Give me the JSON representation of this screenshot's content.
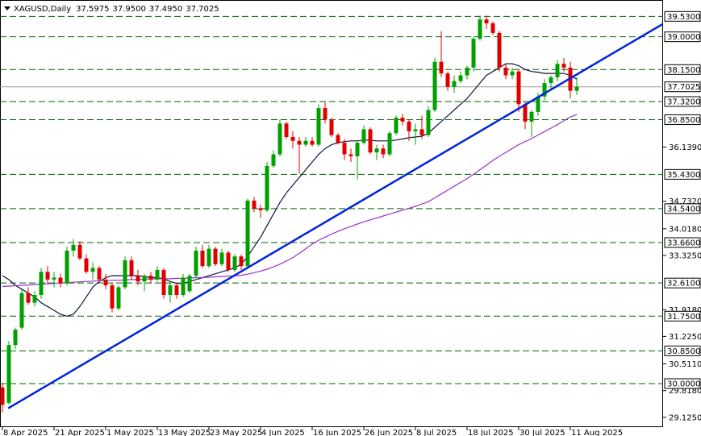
{
  "chart_data": {
    "type": "candlestick",
    "symbol": "XAGUSD,Daily",
    "header_ohlc": [
      "37.5975",
      "37.9500",
      "37.4950",
      "37.7025"
    ],
    "up_color": "#00a000",
    "down_color": "#e00000",
    "open": [
      29.9,
      29.5,
      31.0,
      31.45,
      32.35,
      32.1,
      32.3,
      32.9,
      32.7,
      32.75,
      32.6,
      33.45,
      33.6,
      33.25,
      32.9,
      33.0,
      32.7,
      32.55,
      31.95,
      32.5,
      33.2,
      32.8,
      32.65,
      32.8,
      32.7,
      32.95,
      32.3,
      32.55,
      32.3,
      32.4,
      32.8,
      33.45,
      33.05,
      33.5,
      33.1,
      33.4,
      32.95,
      33.3,
      33.05,
      34.75,
      34.55,
      34.5,
      35.65,
      35.95,
      36.75,
      36.4,
      36.3,
      36.2,
      36.3,
      36.2,
      37.15,
      36.85,
      36.45,
      36.25,
      35.95,
      35.9,
      36.25,
      36.6,
      36.0,
      36.1,
      35.95,
      36.5,
      36.9,
      36.8,
      36.55,
      36.6,
      36.45,
      37.1,
      38.35,
      38.05,
      37.7,
      37.85,
      38.0,
      38.2,
      38.95,
      39.45,
      39.35,
      39.1,
      38.2,
      38.0,
      38.1,
      37.25,
      36.8,
      37.05,
      37.45,
      37.8,
      37.95,
      38.3,
      38.2,
      37.5975
    ],
    "high": [
      30.0,
      31.1,
      31.45,
      32.45,
      32.5,
      32.4,
      33.0,
      33.05,
      32.9,
      32.85,
      33.55,
      33.75,
      33.7,
      33.35,
      33.15,
      33.05,
      32.85,
      32.6,
      32.55,
      33.3,
      33.3,
      32.95,
      32.85,
      32.9,
      33.05,
      33.0,
      32.65,
      32.6,
      32.85,
      32.85,
      33.55,
      33.6,
      33.6,
      33.55,
      33.5,
      33.45,
      33.35,
      33.35,
      34.8,
      34.85,
      34.65,
      35.75,
      36.05,
      36.85,
      36.8,
      36.55,
      36.4,
      36.4,
      36.4,
      37.25,
      37.3,
      36.9,
      36.5,
      36.35,
      36.1,
      36.3,
      36.7,
      36.65,
      36.2,
      36.2,
      36.55,
      36.95,
      37.0,
      36.85,
      36.75,
      36.95,
      37.2,
      38.45,
      39.15,
      38.1,
      38.0,
      38.1,
      38.25,
      39.0,
      39.55,
      39.55,
      39.4,
      39.15,
      38.3,
      38.2,
      38.15,
      37.3,
      37.1,
      37.55,
      37.9,
      38.0,
      38.4,
      38.45,
      38.35,
      37.95
    ],
    "low": [
      29.25,
      29.45,
      30.9,
      31.4,
      32.05,
      32.0,
      32.2,
      32.6,
      32.5,
      32.5,
      32.55,
      33.3,
      33.2,
      32.85,
      32.7,
      32.6,
      32.45,
      31.85,
      31.9,
      32.45,
      32.7,
      32.55,
      32.4,
      32.6,
      32.65,
      32.2,
      32.1,
      32.2,
      32.25,
      32.35,
      32.75,
      33.0,
      33.0,
      33.05,
      33.05,
      32.9,
      32.9,
      32.95,
      33.0,
      34.45,
      34.3,
      34.45,
      35.6,
      35.9,
      36.35,
      36.1,
      35.45,
      36.15,
      36.15,
      36.15,
      36.75,
      36.4,
      36.2,
      35.8,
      35.75,
      35.3,
      36.2,
      35.95,
      35.8,
      35.85,
      35.9,
      36.45,
      36.7,
      36.3,
      36.2,
      36.35,
      36.4,
      37.05,
      37.95,
      37.6,
      37.55,
      37.8,
      37.9,
      38.1,
      38.9,
      39.2,
      39.05,
      38.1,
      37.9,
      37.9,
      37.05,
      36.6,
      36.4,
      36.95,
      37.35,
      37.6,
      37.85,
      38.1,
      37.4,
      37.495
    ],
    "close": [
      29.45,
      31.0,
      31.4,
      32.35,
      32.1,
      32.3,
      32.9,
      32.7,
      32.75,
      32.6,
      33.45,
      33.6,
      33.25,
      32.9,
      33.0,
      32.7,
      32.55,
      31.95,
      32.5,
      33.2,
      32.8,
      32.65,
      32.8,
      32.7,
      32.95,
      32.3,
      32.55,
      32.3,
      32.75,
      32.8,
      33.45,
      33.05,
      33.5,
      33.1,
      33.4,
      32.95,
      33.3,
      33.05,
      34.75,
      34.55,
      34.5,
      35.65,
      35.95,
      36.75,
      36.4,
      36.3,
      36.2,
      36.3,
      36.2,
      37.15,
      36.85,
      36.45,
      36.25,
      35.95,
      35.9,
      36.25,
      36.6,
      36.0,
      36.1,
      35.95,
      36.5,
      36.9,
      36.8,
      36.55,
      36.6,
      36.45,
      37.1,
      38.35,
      38.05,
      37.7,
      37.85,
      38.0,
      38.2,
      38.95,
      39.45,
      39.35,
      39.1,
      38.2,
      38.0,
      38.1,
      37.25,
      36.8,
      37.05,
      37.45,
      37.8,
      37.95,
      38.3,
      38.2,
      37.6,
      37.7025
    ],
    "moving_averages": [
      {
        "color": "#0b1540",
        "values": [
          32.8,
          32.7,
          32.55,
          32.45,
          32.35,
          32.25,
          32.1,
          32.0,
          31.9,
          31.8,
          31.75,
          31.8,
          32.0,
          32.25,
          32.5,
          32.65,
          32.75,
          32.8,
          32.8,
          32.8,
          32.8,
          32.8,
          32.78,
          32.75,
          32.75,
          32.72,
          32.65,
          32.6,
          32.6,
          32.65,
          32.7,
          32.75,
          32.8,
          32.85,
          32.9,
          32.95,
          33.0,
          33.1,
          33.3,
          33.55,
          33.8,
          34.1,
          34.4,
          34.7,
          34.95,
          35.15,
          35.35,
          35.55,
          35.75,
          35.95,
          36.1,
          36.2,
          36.25,
          36.28,
          36.3,
          36.3,
          36.32,
          36.32,
          36.3,
          36.3,
          36.3,
          36.32,
          36.35,
          36.38,
          36.4,
          36.42,
          36.5,
          36.65,
          36.8,
          36.95,
          37.1,
          37.25,
          37.4,
          37.6,
          37.8,
          38.0,
          38.1,
          38.2,
          38.3,
          38.3,
          38.25,
          38.15,
          38.1,
          38.08,
          38.05,
          38.05,
          38.05,
          38.05,
          38.0,
          37.9
        ]
      },
      {
        "color": "#9932cc",
        "values": [
          32.52,
          32.53,
          32.54,
          32.55,
          32.56,
          32.57,
          32.58,
          32.59,
          32.6,
          32.61,
          32.62,
          32.63,
          32.64,
          32.65,
          32.66,
          32.67,
          32.67,
          32.68,
          32.68,
          32.69,
          32.7,
          32.7,
          32.71,
          32.71,
          32.72,
          32.72,
          32.72,
          32.73,
          32.73,
          32.74,
          32.75,
          32.75,
          32.76,
          32.77,
          32.78,
          32.79,
          32.8,
          32.81,
          32.84,
          32.88,
          32.92,
          32.97,
          33.03,
          33.1,
          33.18,
          33.27,
          33.38,
          33.5,
          33.62,
          33.72,
          33.8,
          33.88,
          33.95,
          34.02,
          34.08,
          34.14,
          34.2,
          34.25,
          34.3,
          34.35,
          34.4,
          34.45,
          34.5,
          34.55,
          34.6,
          34.66,
          34.72,
          34.82,
          34.92,
          35.02,
          35.12,
          35.22,
          35.32,
          35.43,
          35.55,
          35.67,
          35.79,
          35.9,
          36.0,
          36.1,
          36.2,
          36.28,
          36.36,
          36.45,
          36.54,
          36.63,
          36.72,
          36.82,
          36.92,
          36.98
        ]
      }
    ],
    "trendline": {
      "color": "#0022dd",
      "x": [
        0.9,
        102.4
      ],
      "values": [
        29.36,
        39.34
      ]
    },
    "levels_color": "#006400",
    "levels": [
      {
        "value": 39.53,
        "label": "39.5300"
      },
      {
        "value": 39.0,
        "label": "39.0000"
      },
      {
        "value": 38.15,
        "label": "38.1500"
      },
      {
        "value": 37.32,
        "label": "37.3200"
      },
      {
        "value": 36.85,
        "label": "36.8500"
      },
      {
        "value": 35.43,
        "label": "35.4300"
      },
      {
        "value": 34.54,
        "label": "34.5400"
      },
      {
        "value": 33.66,
        "label": "33.6600"
      },
      {
        "value": 32.61,
        "label": "32.6100"
      },
      {
        "value": 31.75,
        "label": "31.7500"
      },
      {
        "value": 30.85,
        "label": "30.8500"
      },
      {
        "value": 30.0,
        "label": "30.0000"
      }
    ],
    "current_price": 37.7025,
    "xlim": [
      -0.375,
      102.375
    ],
    "ylim": [
      28.87,
      39.955
    ],
    "yticks": [
      {
        "value": 36.139,
        "label": "36.1390"
      },
      {
        "value": 34.732,
        "label": "34.7320"
      },
      {
        "value": 34.018,
        "label": "34.0180"
      },
      {
        "value": 33.325,
        "label": "33.3250"
      },
      {
        "value": 31.918,
        "label": "31.9180"
      },
      {
        "value": 31.225,
        "label": "31.2250"
      },
      {
        "value": 30.511,
        "label": "30.5110"
      },
      {
        "value": 29.818,
        "label": "29.8180"
      },
      {
        "value": 29.125,
        "label": "29.1250"
      }
    ],
    "xticks": [
      {
        "value": 0,
        "label": "8 Apr 2025"
      },
      {
        "value": 8,
        "label": "21 Apr 2025"
      },
      {
        "value": 16,
        "label": "1 May 2025"
      },
      {
        "value": 24,
        "label": "13 May 2025"
      },
      {
        "value": 32,
        "label": "23 May 2025"
      },
      {
        "value": 40,
        "label": "4 Jun 2025"
      },
      {
        "value": 48,
        "label": "16 Jun 2025"
      },
      {
        "value": 56,
        "label": "26 Jun 2025"
      },
      {
        "value": 64,
        "label": "8 Jul 2025"
      },
      {
        "value": 72,
        "label": "18 Jul 2025"
      },
      {
        "value": 80,
        "label": "30 Jul 2025"
      },
      {
        "value": 88,
        "label": "11 Aug 2025"
      }
    ]
  }
}
